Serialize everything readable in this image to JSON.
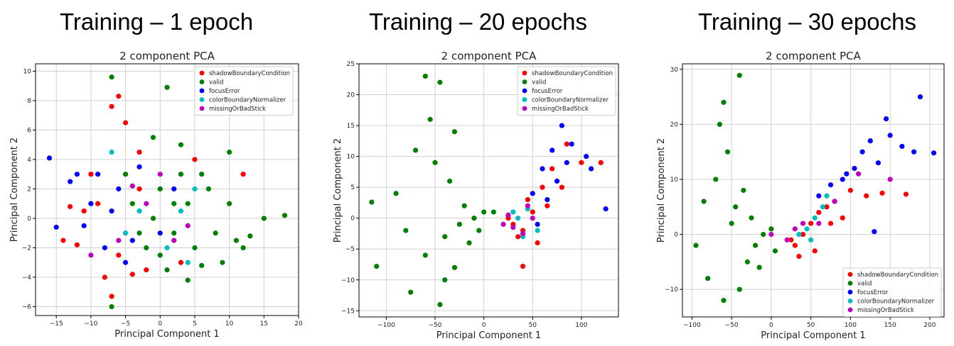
{
  "panels": [
    {
      "heading": "Training – 1 epoch"
    },
    {
      "heading": "Training – 20 epochs"
    },
    {
      "heading": "Training – 30 epochs"
    }
  ],
  "colors": {
    "shadowBoundaryCondition": "#ff0000",
    "valid": "#008000",
    "focusError": "#0000ff",
    "colorBoundaryNormalizer": "#00bfbf",
    "missingOrBadStick": "#bf00bf"
  },
  "chart_data": [
    {
      "type": "scatter",
      "title": "2 component PCA",
      "xlabel": "Principal Component 1",
      "ylabel": "Principal Component 2",
      "xlim": [
        -18,
        20
      ],
      "ylim": [
        -6.6,
        10.5
      ],
      "xticks": [
        -15,
        -10,
        -5,
        0,
        5,
        10,
        15,
        20
      ],
      "yticks": [
        -6,
        -4,
        -2,
        0,
        2,
        4,
        6,
        8,
        10
      ],
      "grid": true,
      "legend_position": "top-right",
      "series": [
        {
          "name": "shadowBoundaryCondition",
          "color": "#ff0000",
          "points": [
            [
              -14,
              -1.5
            ],
            [
              -12,
              -1.8
            ],
            [
              -10,
              3
            ],
            [
              -8,
              -4
            ],
            [
              -7,
              -5.3
            ],
            [
              -6,
              8.3
            ],
            [
              -5,
              6.5
            ],
            [
              -4,
              -3.8
            ],
            [
              -3,
              4.5
            ],
            [
              -9,
              1
            ],
            [
              -11,
              0.5
            ],
            [
              -6,
              -2.5
            ],
            [
              -2,
              -3.5
            ],
            [
              3,
              -3
            ],
            [
              5,
              4
            ],
            [
              12,
              3
            ],
            [
              -7,
              7.6
            ],
            [
              -13,
              0.8
            ],
            [
              -5,
              -1
            ],
            [
              -3,
              2
            ]
          ]
        },
        {
          "name": "valid",
          "color": "#008000",
          "points": [
            [
              -7,
              9.6
            ],
            [
              1,
              8.9
            ],
            [
              15,
              0
            ],
            [
              18,
              0.2
            ],
            [
              -1,
              0
            ],
            [
              0,
              2
            ],
            [
              2,
              -1
            ],
            [
              3,
              3
            ],
            [
              5,
              -2
            ],
            [
              -2,
              -2
            ],
            [
              4,
              1
            ],
            [
              6,
              3
            ],
            [
              8,
              -1
            ],
            [
              10,
              1
            ],
            [
              12,
              -2
            ],
            [
              -4,
              1
            ],
            [
              1,
              -3.5
            ],
            [
              3,
              5
            ],
            [
              -1,
              5.5
            ],
            [
              7,
              2
            ],
            [
              9,
              -3
            ],
            [
              11,
              -1.5
            ],
            [
              -3,
              -1
            ],
            [
              2,
              1
            ],
            [
              0,
              -2.5
            ],
            [
              -5,
              3
            ],
            [
              6,
              -3.2
            ],
            [
              4,
              -4.2
            ],
            [
              13,
              -1.2
            ],
            [
              10,
              4.5
            ],
            [
              -7,
              -6
            ]
          ]
        },
        {
          "name": "focusError",
          "color": "#0000ff",
          "points": [
            [
              -16,
              4.1
            ],
            [
              -15,
              -0.6
            ],
            [
              -13,
              2.5
            ],
            [
              -12,
              3
            ],
            [
              -10,
              1
            ],
            [
              -8,
              -2
            ],
            [
              -9,
              3
            ],
            [
              -7,
              0.5
            ],
            [
              -11,
              -0.5
            ],
            [
              -4,
              -1.5
            ],
            [
              -6,
              2
            ],
            [
              -3,
              3.5
            ],
            [
              -5,
              -3
            ],
            [
              0,
              -1
            ],
            [
              2,
              2
            ]
          ]
        },
        {
          "name": "colorBoundaryNormalizer",
          "color": "#00bfbf",
          "points": [
            [
              -7,
              4.5
            ],
            [
              -5,
              -1
            ],
            [
              -3,
              0.5
            ],
            [
              1,
              -2
            ],
            [
              3,
              0.5
            ],
            [
              4,
              -3
            ],
            [
              5,
              2
            ]
          ]
        },
        {
          "name": "missingOrBadStick",
          "color": "#bf00bf",
          "points": [
            [
              -10,
              -2.5
            ],
            [
              -6,
              -1.5
            ],
            [
              -2,
              1
            ],
            [
              0,
              3
            ],
            [
              2,
              -1.5
            ],
            [
              -4,
              2.2
            ],
            [
              4,
              -0.5
            ]
          ]
        }
      ]
    },
    {
      "type": "scatter",
      "title": "2 component PCA",
      "xlabel": "Principal Component 1",
      "ylabel": "Principal Component 2",
      "xlim": [
        -128,
        138
      ],
      "ylim": [
        -16,
        25
      ],
      "xticks": [
        -100,
        -50,
        0,
        50,
        100
      ],
      "yticks": [
        -15,
        -10,
        -5,
        0,
        5,
        10,
        15,
        20,
        25
      ],
      "grid": true,
      "legend_position": "top-right",
      "series": [
        {
          "name": "shadowBoundaryCondition",
          "color": "#ff0000",
          "points": [
            [
              30,
              -1
            ],
            [
              40,
              -2
            ],
            [
              50,
              1
            ],
            [
              45,
              3
            ],
            [
              35,
              -3
            ],
            [
              60,
              5
            ],
            [
              70,
              8
            ],
            [
              85,
              12
            ],
            [
              100,
              9
            ],
            [
              120,
              9
            ],
            [
              55,
              -4
            ],
            [
              40,
              -7.8
            ],
            [
              25,
              0
            ],
            [
              65,
              2
            ],
            [
              80,
              5
            ]
          ]
        },
        {
          "name": "valid",
          "color": "#008000",
          "points": [
            [
              -60,
              23
            ],
            [
              -45,
              22
            ],
            [
              -55,
              16
            ],
            [
              -30,
              14
            ],
            [
              -70,
              11
            ],
            [
              -90,
              4
            ],
            [
              -110,
              -7.8
            ],
            [
              -115,
              2.6
            ],
            [
              -80,
              -2
            ],
            [
              -60,
              -6
            ],
            [
              -40,
              -3
            ],
            [
              -25,
              -1
            ],
            [
              -20,
              2
            ],
            [
              -10,
              0
            ],
            [
              0,
              1
            ],
            [
              -35,
              6
            ],
            [
              -50,
              9
            ],
            [
              -15,
              -4
            ],
            [
              -30,
              -8
            ],
            [
              -45,
              -14
            ],
            [
              -75,
              -12
            ],
            [
              -40,
              -10
            ],
            [
              -5,
              -2
            ],
            [
              10,
              1
            ]
          ]
        },
        {
          "name": "focusError",
          "color": "#0000ff",
          "points": [
            [
              50,
              4
            ],
            [
              60,
              8
            ],
            [
              70,
              11
            ],
            [
              80,
              15
            ],
            [
              90,
              12
            ],
            [
              105,
              10
            ],
            [
              110,
              8
            ],
            [
              125,
              1.5
            ],
            [
              75,
              6
            ],
            [
              65,
              3
            ],
            [
              55,
              -1
            ],
            [
              85,
              9
            ]
          ]
        },
        {
          "name": "colorBoundaryNormalizer",
          "color": "#00bfbf",
          "points": [
            [
              35,
              0
            ],
            [
              45,
              1.5
            ],
            [
              55,
              -2
            ],
            [
              40,
              -3
            ],
            [
              30,
              1
            ]
          ]
        },
        {
          "name": "missingOrBadStick",
          "color": "#bf00bf",
          "points": [
            [
              20,
              -1
            ],
            [
              25,
              0.5
            ],
            [
              30,
              -1.5
            ],
            [
              45,
              2
            ],
            [
              40,
              -2.5
            ],
            [
              50,
              0
            ]
          ]
        }
      ]
    },
    {
      "type": "scatter",
      "title": "2 component PCA",
      "xlabel": "Principal Component 1",
      "ylabel": "Principal Component 2",
      "xlim": [
        -112,
        218
      ],
      "ylim": [
        -15,
        31
      ],
      "xticks": [
        -100,
        -50,
        0,
        50,
        100,
        150,
        200
      ],
      "yticks": [
        -10,
        0,
        10,
        20,
        30
      ],
      "grid": true,
      "legend_position": "bottom-right",
      "series": [
        {
          "name": "shadowBoundaryCondition",
          "color": "#ff0000",
          "points": [
            [
              30,
              -2
            ],
            [
              40,
              0
            ],
            [
              50,
              2
            ],
            [
              60,
              4
            ],
            [
              70,
              5
            ],
            [
              80,
              6
            ],
            [
              100,
              8
            ],
            [
              120,
              7
            ],
            [
              140,
              7.5
            ],
            [
              170,
              7.3
            ],
            [
              35,
              -4
            ],
            [
              55,
              -3
            ],
            [
              25,
              -1
            ],
            [
              75,
              2
            ],
            [
              90,
              3
            ]
          ]
        },
        {
          "name": "valid",
          "color": "#008000",
          "points": [
            [
              -65,
              20
            ],
            [
              -40,
              28.9
            ],
            [
              -60,
              24
            ],
            [
              -55,
              15
            ],
            [
              -70,
              10
            ],
            [
              -95,
              -2
            ],
            [
              -80,
              -8
            ],
            [
              -60,
              -12
            ],
            [
              -40,
              -10
            ],
            [
              -30,
              -5
            ],
            [
              -20,
              -2
            ],
            [
              -10,
              0
            ],
            [
              0,
              1
            ],
            [
              -45,
              5
            ],
            [
              -35,
              8
            ],
            [
              -50,
              2
            ],
            [
              -15,
              -6
            ],
            [
              -25,
              3
            ],
            [
              5,
              -3
            ],
            [
              -85,
              6
            ]
          ]
        },
        {
          "name": "focusError",
          "color": "#0000ff",
          "points": [
            [
              60,
              7
            ],
            [
              75,
              9
            ],
            [
              90,
              10
            ],
            [
              105,
              12
            ],
            [
              115,
              15
            ],
            [
              125,
              17
            ],
            [
              135,
              13
            ],
            [
              145,
              21
            ],
            [
              150,
              18
            ],
            [
              165,
              16
            ],
            [
              180,
              15
            ],
            [
              188,
              25
            ],
            [
              205,
              14.8
            ],
            [
              95,
              11
            ],
            [
              130,
              0.5
            ]
          ]
        },
        {
          "name": "colorBoundaryNormalizer",
          "color": "#00bfbf",
          "points": [
            [
              45,
              1
            ],
            [
              55,
              3
            ],
            [
              65,
              5
            ],
            [
              35,
              0
            ],
            [
              50,
              -1
            ],
            [
              70,
              7
            ]
          ]
        },
        {
          "name": "missingOrBadStick",
          "color": "#bf00bf",
          "points": [
            [
              20,
              -1
            ],
            [
              30,
              1
            ],
            [
              40,
              2
            ],
            [
              60,
              2
            ],
            [
              80,
              6
            ],
            [
              110,
              11
            ],
            [
              150,
              10
            ],
            [
              0,
              0
            ]
          ]
        }
      ]
    }
  ]
}
